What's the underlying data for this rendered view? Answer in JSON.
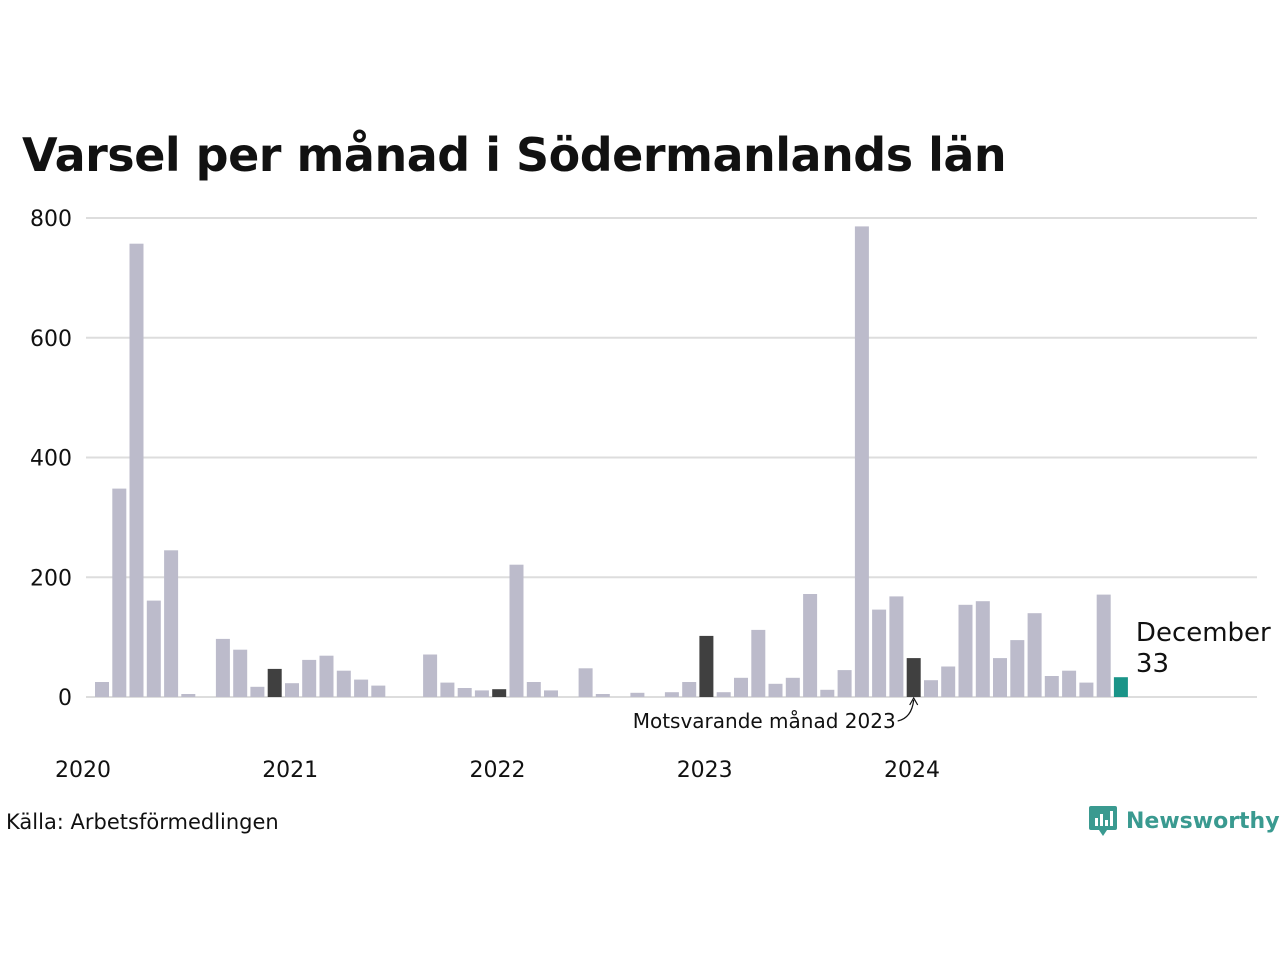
{
  "title": "Varsel per månad i Södermanlands län",
  "source": "Källa: Arbetsförmedlingen",
  "brand": {
    "name": "Newsworthy",
    "icon": "newsworthy-logo-icon",
    "color": "#3a9a90"
  },
  "chart_data": {
    "type": "bar",
    "ylim": [
      0,
      800
    ],
    "yticks": [
      "0",
      "200",
      "400",
      "600",
      "800"
    ],
    "grid": true,
    "legend": "none",
    "x_tick_labels": [
      {
        "label": "2020",
        "index": 0
      },
      {
        "label": "2021",
        "index": 12
      },
      {
        "label": "2022",
        "index": 24
      },
      {
        "label": "2023",
        "index": 36
      },
      {
        "label": "2024",
        "index": 48
      }
    ],
    "values": [
      25,
      348,
      757,
      161,
      245,
      5,
      0,
      97,
      79,
      17,
      47,
      23,
      62,
      69,
      44,
      29,
      19,
      0,
      0,
      71,
      24,
      15,
      11,
      13,
      221,
      25,
      11,
      0,
      48,
      5,
      0,
      7,
      0,
      8,
      25,
      102,
      8,
      32,
      112,
      22,
      32,
      172,
      12,
      45,
      786,
      146,
      168,
      65,
      28,
      51,
      154,
      160,
      65,
      95,
      140,
      35,
      44,
      24,
      171,
      33
    ],
    "highlight_indices": [
      10,
      23,
      35,
      47
    ],
    "current_index": 59,
    "colors": {
      "default": "#bcbbcb",
      "highlight": "#404040",
      "current": "#1a9488",
      "grid": "#dddddd"
    },
    "annotation": {
      "text": "Motsvarande månad 2023",
      "index": 47
    },
    "last_label": {
      "month": "December",
      "value": "33"
    }
  }
}
